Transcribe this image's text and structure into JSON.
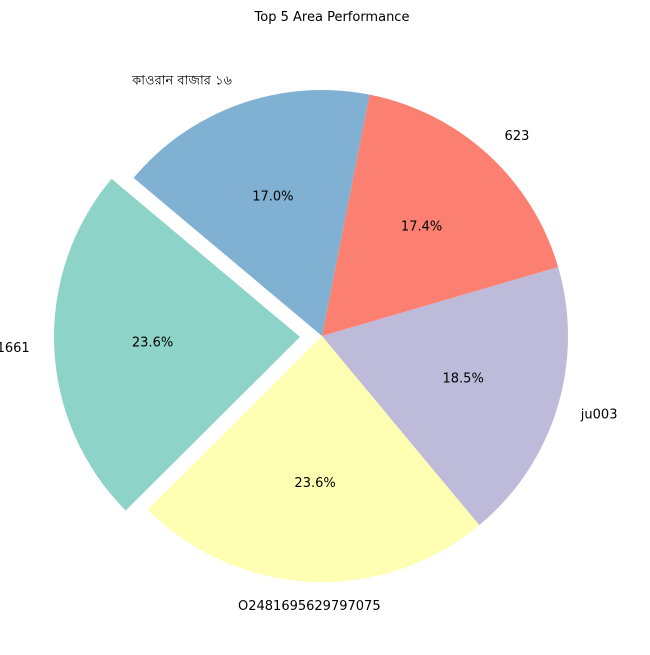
{
  "chart_data": {
    "type": "pie",
    "title": "Top 5 Area Performance",
    "labels": [
      "1661",
      "O2481695629797075",
      "ju003",
      "623",
      "কাওরান বাজার ১৬"
    ],
    "values": [
      23.6,
      23.6,
      18.5,
      17.4,
      17.0
    ],
    "percent_labels": [
      "23.6%",
      "23.6%",
      "18.5%",
      "17.4%",
      "17.0%"
    ],
    "colors": [
      "#8dd3c7",
      "#ffffb3",
      "#bebada",
      "#fb8072",
      "#80b1d3"
    ],
    "exploded": [
      "1661"
    ],
    "start_angle": 140,
    "direction": "counterclockwise"
  }
}
